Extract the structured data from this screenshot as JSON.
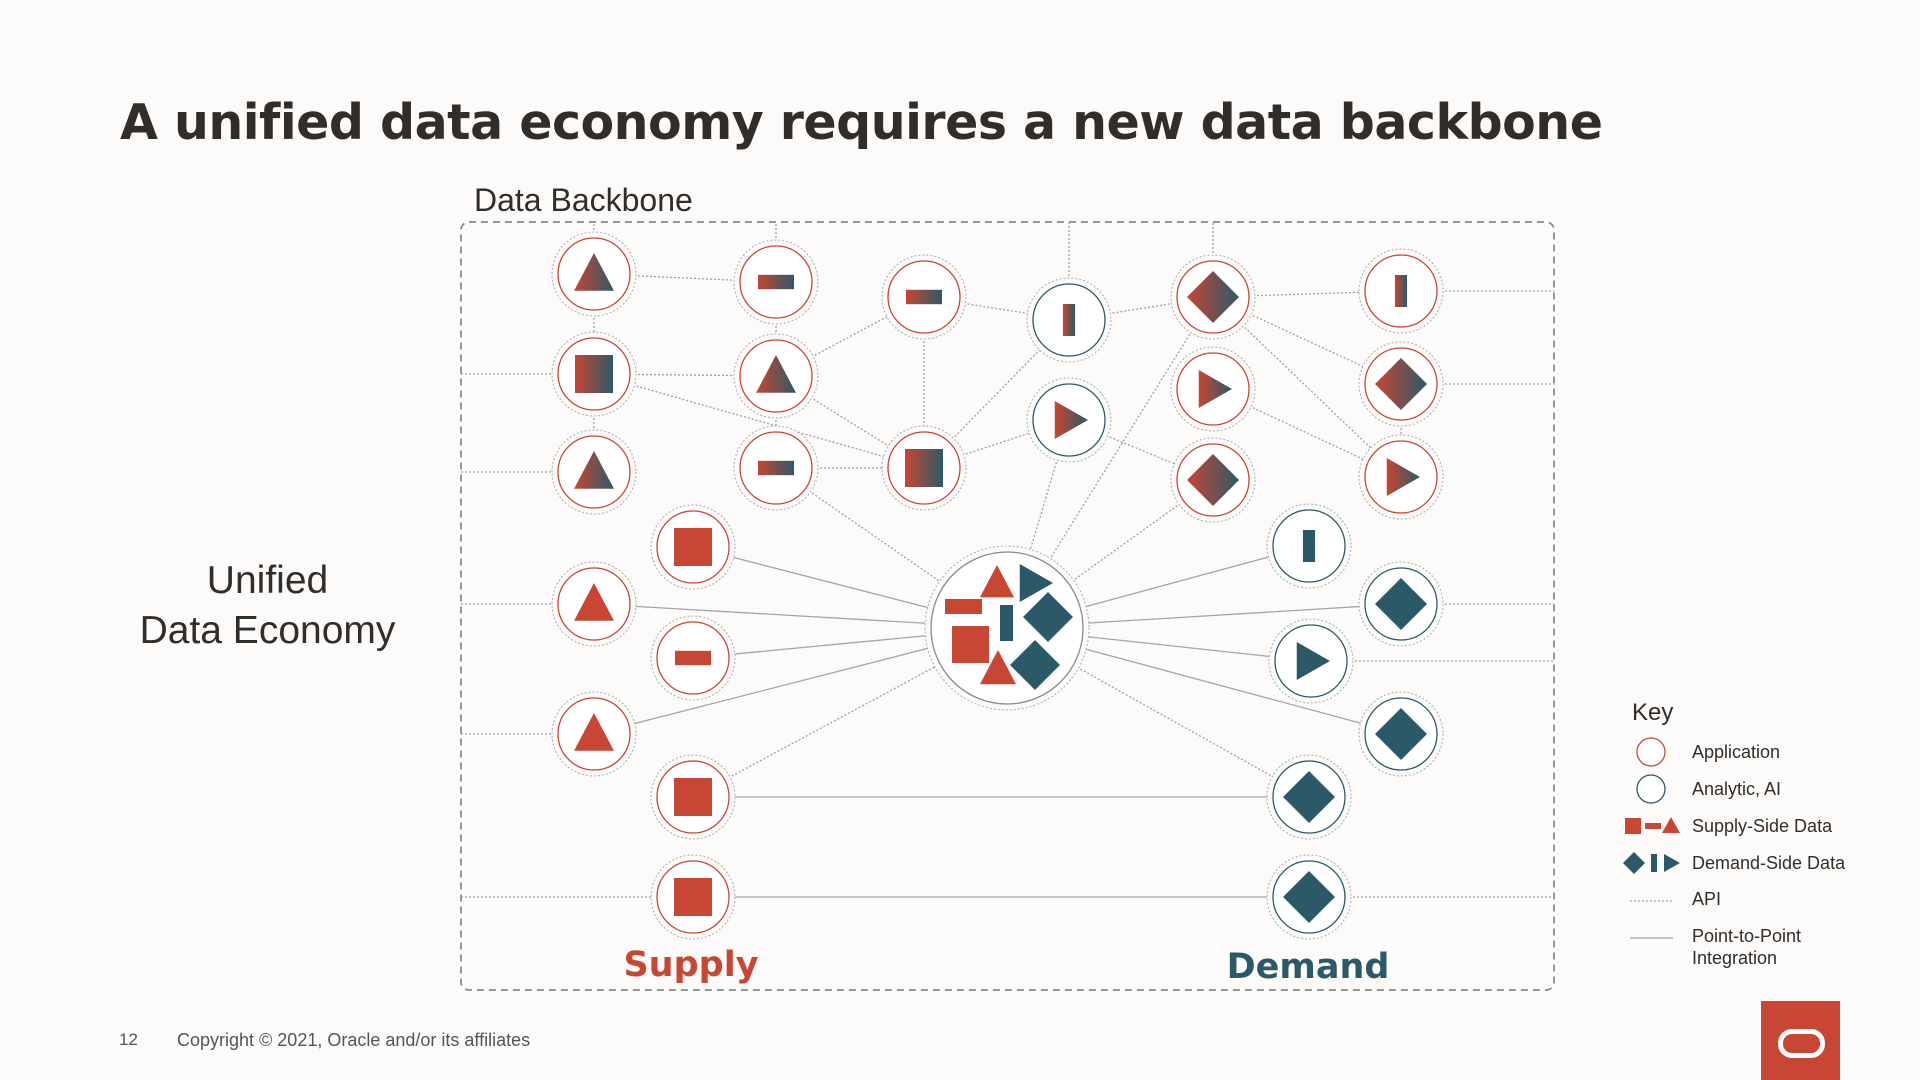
{
  "title": "A unified data economy requires a new data backbone",
  "left_label": [
    "Unified",
    "Data Economy"
  ],
  "backbone_label": "Data Backbone",
  "supply_label": "Supply",
  "demand_label": "Demand",
  "key": {
    "title": "Key",
    "items": [
      {
        "name": "application",
        "label": [
          "Application"
        ]
      },
      {
        "name": "analytic",
        "label": [
          "Analytic, AI"
        ]
      },
      {
        "name": "supply-data",
        "label": [
          "Supply-Side Data"
        ]
      },
      {
        "name": "demand-data",
        "label": [
          "Demand-Side Data"
        ]
      },
      {
        "name": "api",
        "label": [
          "API"
        ]
      },
      {
        "name": "p2p",
        "label": [
          "Point-to-Point",
          "Integration"
        ]
      }
    ]
  },
  "colors": {
    "supply": "#c74634",
    "demand": "#2c5967",
    "text": "#312d2a",
    "line": "#9a9a9a"
  },
  "footer": {
    "page": "12",
    "copyright": "Copyright © 2021, Oracle and/or its affiliates"
  },
  "logo": "oracle-logo"
}
